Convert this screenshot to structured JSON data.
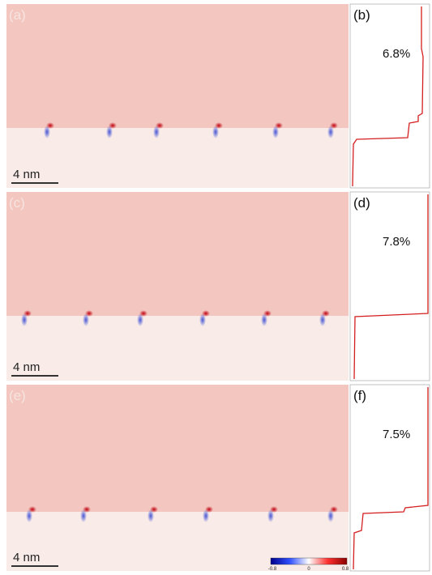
{
  "panels": [
    {
      "label": "(a)",
      "scale_bar": "4 nm"
    },
    {
      "label": "(b)",
      "strain": "6.8%"
    },
    {
      "label": "(c)",
      "scale_bar": "4 nm"
    },
    {
      "label": "(d)",
      "strain": "7.8%"
    },
    {
      "label": "(e)",
      "scale_bar": "4 nm"
    },
    {
      "label": "(f)",
      "strain": "7.5%"
    }
  ],
  "colorbar": {
    "ticks": [
      "-0.8",
      "0",
      "0.8"
    ]
  }
}
